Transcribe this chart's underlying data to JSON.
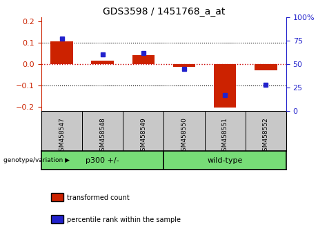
{
  "title": "GDS3598 / 1451768_a_at",
  "samples": [
    "GSM458547",
    "GSM458548",
    "GSM458549",
    "GSM458550",
    "GSM458551",
    "GSM458552"
  ],
  "red_values": [
    0.105,
    0.016,
    0.042,
    -0.012,
    -0.205,
    -0.028
  ],
  "blue_values_pct": [
    77,
    60,
    62,
    45,
    17,
    28
  ],
  "ylim_left": [
    -0.22,
    0.22
  ],
  "ylim_right": [
    0,
    100
  ],
  "left_yticks": [
    -0.2,
    -0.1,
    0.0,
    0.1,
    0.2
  ],
  "right_yticks": [
    0,
    25,
    50,
    75,
    100
  ],
  "right_yticklabels": [
    "0",
    "25",
    "50",
    "75",
    "100%"
  ],
  "red_color": "#CC2200",
  "blue_color": "#2222CC",
  "bg_label": "#C8C8C8",
  "bg_group": "#77DD77",
  "zero_line_color": "#CC0000",
  "group1_label": "p300 +/-",
  "group2_label": "wild-type",
  "legend_labels": [
    "transformed count",
    "percentile rank within the sample"
  ],
  "genotype_label": "genotype/variation"
}
